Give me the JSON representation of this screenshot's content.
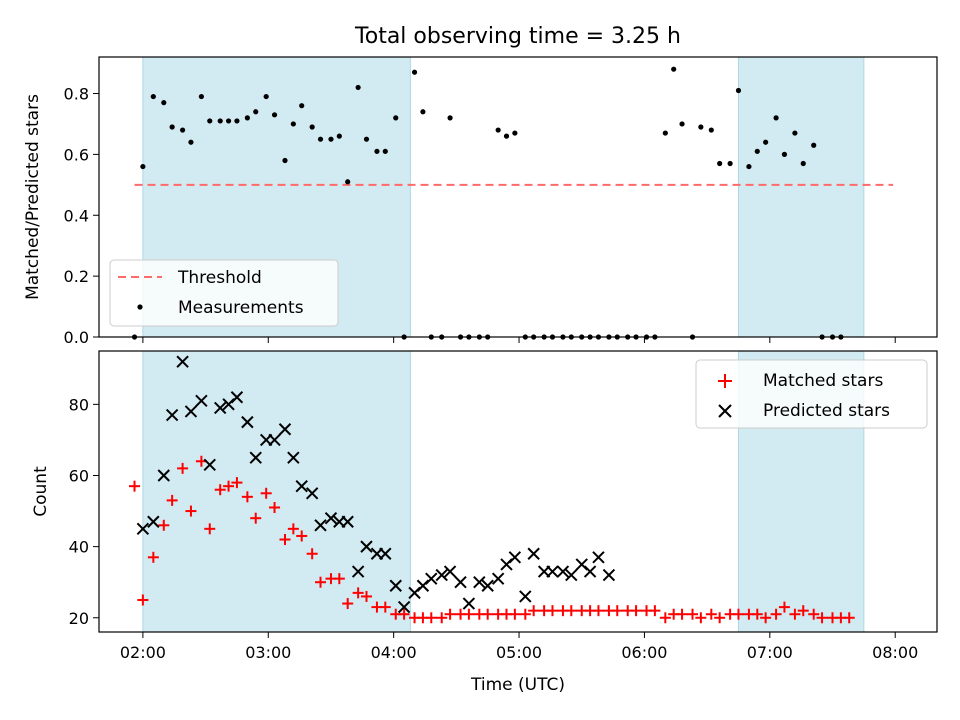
{
  "figure": {
    "title": "Total observing time = 3.25 h"
  },
  "colors": {
    "shade": "#add8e6",
    "threshold": "#ff6a6a",
    "matched": "#ff0000",
    "predicted": "#000000",
    "measure": "#000000"
  },
  "chart_data": [
    {
      "type": "scatter",
      "panel": "top",
      "xlabel": "",
      "ylabel": "Matched/Predicted stars",
      "xlim": [
        "01:39",
        "08:20"
      ],
      "ylim": [
        0,
        0.92
      ],
      "yticks": [
        0,
        0.2,
        0.4,
        0.6,
        0.8
      ],
      "ytick_labels": [
        "0.0",
        "0.2",
        "0.4",
        "0.6",
        "0.8"
      ],
      "xticks": [
        "02:00",
        "03:00",
        "04:00",
        "05:00",
        "06:00",
        "07:00",
        "08:00"
      ],
      "shaded_intervals": [
        [
          "02:00",
          "04:08"
        ],
        [
          "06:45",
          "07:45"
        ]
      ],
      "threshold": {
        "value": 0.5,
        "x_range": [
          "01:56",
          "07:59"
        ]
      },
      "legend": {
        "position": "lower-left",
        "entries": [
          "Threshold",
          "Measurements"
        ]
      },
      "series": [
        {
          "name": "Measurements",
          "points": [
            [
              "01:56",
              0.0
            ],
            [
              "02:00",
              0.56
            ],
            [
              "02:05",
              0.79
            ],
            [
              "02:10",
              0.77
            ],
            [
              "02:14",
              0.69
            ],
            [
              "02:19",
              0.68
            ],
            [
              "02:23",
              0.64
            ],
            [
              "02:28",
              0.79
            ],
            [
              "02:32",
              0.71
            ],
            [
              "02:37",
              0.71
            ],
            [
              "02:41",
              0.71
            ],
            [
              "02:45",
              0.71
            ],
            [
              "02:50",
              0.72
            ],
            [
              "02:54",
              0.74
            ],
            [
              "02:59",
              0.79
            ],
            [
              "03:03",
              0.73
            ],
            [
              "03:08",
              0.58
            ],
            [
              "03:12",
              0.7
            ],
            [
              "03:16",
              0.76
            ],
            [
              "03:21",
              0.69
            ],
            [
              "03:25",
              0.65
            ],
            [
              "03:30",
              0.65
            ],
            [
              "03:34",
              0.66
            ],
            [
              "03:38",
              0.51
            ],
            [
              "03:43",
              0.82
            ],
            [
              "03:47",
              0.65
            ],
            [
              "03:52",
              0.61
            ],
            [
              "03:56",
              0.61
            ],
            [
              "04:01",
              0.72
            ],
            [
              "04:05",
              0.0
            ],
            [
              "04:10",
              0.87
            ],
            [
              "04:14",
              0.74
            ],
            [
              "04:18",
              0.0
            ],
            [
              "04:23",
              0.0
            ],
            [
              "04:27",
              0.72
            ],
            [
              "04:32",
              0.0
            ],
            [
              "04:36",
              0.0
            ],
            [
              "04:41",
              0.0
            ],
            [
              "04:45",
              0.0
            ],
            [
              "04:50",
              0.68
            ],
            [
              "04:54",
              0.66
            ],
            [
              "04:58",
              0.67
            ],
            [
              "05:03",
              0.0
            ],
            [
              "05:07",
              0.0
            ],
            [
              "05:12",
              0.0
            ],
            [
              "05:16",
              0.0
            ],
            [
              "05:21",
              0.0
            ],
            [
              "05:25",
              0.0
            ],
            [
              "05:30",
              0.0
            ],
            [
              "05:34",
              0.0
            ],
            [
              "05:38",
              0.0
            ],
            [
              "05:43",
              0.0
            ],
            [
              "05:47",
              0.0
            ],
            [
              "05:52",
              0.0
            ],
            [
              "05:56",
              0.0
            ],
            [
              "06:01",
              0.0
            ],
            [
              "06:05",
              0.0
            ],
            [
              "06:10",
              0.67
            ],
            [
              "06:14",
              0.88
            ],
            [
              "06:18",
              0.7
            ],
            [
              "06:23",
              0.0
            ],
            [
              "06:27",
              0.69
            ],
            [
              "06:32",
              0.68
            ],
            [
              "06:36",
              0.57
            ],
            [
              "06:41",
              0.57
            ],
            [
              "06:45",
              0.81
            ],
            [
              "06:50",
              0.56
            ],
            [
              "06:54",
              0.61
            ],
            [
              "06:58",
              0.64
            ],
            [
              "07:03",
              0.72
            ],
            [
              "07:07",
              0.6
            ],
            [
              "07:12",
              0.67
            ],
            [
              "07:16",
              0.57
            ],
            [
              "07:21",
              0.63
            ],
            [
              "07:25",
              0.0
            ],
            [
              "07:30",
              0.0
            ],
            [
              "07:34",
              0.0
            ]
          ]
        }
      ]
    },
    {
      "type": "scatter",
      "panel": "bottom",
      "xlabel": "Time (UTC)",
      "ylabel": "Count",
      "xlim": [
        "01:39",
        "08:20"
      ],
      "ylim": [
        16,
        95
      ],
      "yticks": [
        20,
        40,
        60,
        80
      ],
      "ytick_labels": [
        "20",
        "40",
        "60",
        "80"
      ],
      "xticks": [
        "02:00",
        "03:00",
        "04:00",
        "05:00",
        "06:00",
        "07:00",
        "08:00"
      ],
      "xtick_labels": [
        "02:00",
        "03:00",
        "04:00",
        "05:00",
        "06:00",
        "07:00",
        "08:00"
      ],
      "shaded_intervals": [
        [
          "02:00",
          "04:08"
        ],
        [
          "06:45",
          "07:45"
        ]
      ],
      "legend": {
        "position": "top-right",
        "entries": [
          "Matched stars",
          "Predicted stars"
        ]
      },
      "series": [
        {
          "name": "Matched stars",
          "marker": "+",
          "points": [
            [
              "01:56",
              57
            ],
            [
              "02:00",
              25
            ],
            [
              "02:05",
              37
            ],
            [
              "02:10",
              46
            ],
            [
              "02:14",
              53
            ],
            [
              "02:19",
              62
            ],
            [
              "02:23",
              50
            ],
            [
              "02:28",
              64
            ],
            [
              "02:32",
              45
            ],
            [
              "02:37",
              56
            ],
            [
              "02:41",
              57
            ],
            [
              "02:45",
              58
            ],
            [
              "02:50",
              54
            ],
            [
              "02:54",
              48
            ],
            [
              "02:59",
              55
            ],
            [
              "03:03",
              51
            ],
            [
              "03:08",
              42
            ],
            [
              "03:12",
              45
            ],
            [
              "03:16",
              43
            ],
            [
              "03:21",
              38
            ],
            [
              "03:25",
              30
            ],
            [
              "03:30",
              31
            ],
            [
              "03:34",
              31
            ],
            [
              "03:38",
              24
            ],
            [
              "03:43",
              27
            ],
            [
              "03:47",
              26
            ],
            [
              "03:52",
              23
            ],
            [
              "03:56",
              23
            ],
            [
              "04:01",
              21
            ],
            [
              "04:05",
              21
            ],
            [
              "04:10",
              20
            ],
            [
              "04:14",
              20
            ],
            [
              "04:18",
              20
            ],
            [
              "04:23",
              20
            ],
            [
              "04:27",
              21
            ],
            [
              "04:32",
              21
            ],
            [
              "04:36",
              21
            ],
            [
              "04:41",
              21
            ],
            [
              "04:45",
              21
            ],
            [
              "04:50",
              21
            ],
            [
              "04:54",
              21
            ],
            [
              "04:58",
              21
            ],
            [
              "05:03",
              21
            ],
            [
              "05:07",
              22
            ],
            [
              "05:12",
              22
            ],
            [
              "05:16",
              22
            ],
            [
              "05:21",
              22
            ],
            [
              "05:25",
              22
            ],
            [
              "05:30",
              22
            ],
            [
              "05:34",
              22
            ],
            [
              "05:38",
              22
            ],
            [
              "05:43",
              22
            ],
            [
              "05:47",
              22
            ],
            [
              "05:52",
              22
            ],
            [
              "05:56",
              22
            ],
            [
              "06:01",
              22
            ],
            [
              "06:05",
              22
            ],
            [
              "06:10",
              20
            ],
            [
              "06:14",
              21
            ],
            [
              "06:18",
              21
            ],
            [
              "06:23",
              21
            ],
            [
              "06:27",
              20
            ],
            [
              "06:32",
              21
            ],
            [
              "06:36",
              20
            ],
            [
              "06:41",
              21
            ],
            [
              "06:45",
              21
            ],
            [
              "06:50",
              21
            ],
            [
              "06:54",
              21
            ],
            [
              "06:58",
              20
            ],
            [
              "07:03",
              21
            ],
            [
              "07:07",
              23
            ],
            [
              "07:12",
              21
            ],
            [
              "07:16",
              22
            ],
            [
              "07:21",
              21
            ],
            [
              "07:25",
              20
            ],
            [
              "07:30",
              20
            ],
            [
              "07:34",
              20
            ],
            [
              "07:38",
              20
            ]
          ]
        },
        {
          "name": "Predicted stars",
          "marker": "x",
          "points": [
            [
              "02:00",
              45
            ],
            [
              "02:05",
              47
            ],
            [
              "02:10",
              60
            ],
            [
              "02:14",
              77
            ],
            [
              "02:19",
              92
            ],
            [
              "02:23",
              78
            ],
            [
              "02:28",
              81
            ],
            [
              "02:32",
              63
            ],
            [
              "02:37",
              79
            ],
            [
              "02:41",
              80
            ],
            [
              "02:45",
              82
            ],
            [
              "02:50",
              75
            ],
            [
              "02:54",
              65
            ],
            [
              "02:59",
              70
            ],
            [
              "03:03",
              70
            ],
            [
              "03:08",
              73
            ],
            [
              "03:12",
              65
            ],
            [
              "03:16",
              57
            ],
            [
              "03:21",
              55
            ],
            [
              "03:25",
              46
            ],
            [
              "03:30",
              48
            ],
            [
              "03:34",
              47
            ],
            [
              "03:38",
              47
            ],
            [
              "03:43",
              33
            ],
            [
              "03:47",
              40
            ],
            [
              "03:52",
              38
            ],
            [
              "03:56",
              38
            ],
            [
              "04:01",
              29
            ],
            [
              "04:05",
              23
            ],
            [
              "04:10",
              27
            ],
            [
              "04:14",
              29
            ],
            [
              "04:18",
              31
            ],
            [
              "04:23",
              32
            ],
            [
              "04:27",
              33
            ],
            [
              "04:32",
              30
            ],
            [
              "04:36",
              24
            ],
            [
              "04:41",
              30
            ],
            [
              "04:45",
              29
            ],
            [
              "04:50",
              31
            ],
            [
              "04:54",
              35
            ],
            [
              "04:58",
              37
            ],
            [
              "05:03",
              26
            ],
            [
              "05:07",
              38
            ],
            [
              "05:12",
              33
            ],
            [
              "05:16",
              33
            ],
            [
              "05:21",
              33
            ],
            [
              "05:25",
              32
            ],
            [
              "05:30",
              35
            ],
            [
              "05:34",
              33
            ],
            [
              "05:38",
              37
            ],
            [
              "05:43",
              32
            ]
          ]
        }
      ]
    }
  ]
}
